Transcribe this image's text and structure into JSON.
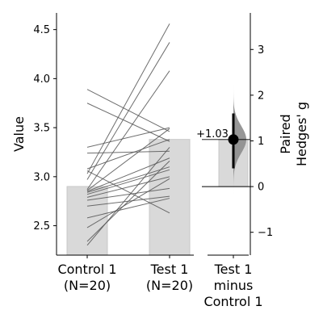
{
  "chart_data": [
    {
      "type": "paired-bar",
      "ylabel": "Value",
      "ylim": [
        2.2,
        4.67
      ],
      "yticks": [
        2.5,
        3.0,
        3.5,
        4.0,
        4.5
      ],
      "ytick_labels": [
        "2.5",
        "3.0",
        "3.5",
        "4.0",
        "4.5"
      ],
      "categories": [
        "Control 1\n(N=20)",
        "Test 1\n(N=20)"
      ],
      "bar_values": [
        2.9,
        3.38
      ],
      "bar_color": "#d9d9d9",
      "line_color": "#555555",
      "pairs": [
        [
          3.89,
          3.46
        ],
        [
          3.75,
          3.36
        ],
        [
          3.3,
          3.5
        ],
        [
          3.24,
          3.26
        ],
        [
          3.08,
          3.38
        ],
        [
          3.06,
          2.63
        ],
        [
          3.03,
          4.56
        ],
        [
          2.97,
          4.37
        ],
        [
          2.87,
          4.08
        ],
        [
          2.86,
          3.49
        ],
        [
          2.85,
          3.19
        ],
        [
          2.84,
          3.1
        ],
        [
          2.82,
          3.07
        ],
        [
          2.79,
          3.0
        ],
        [
          2.76,
          2.88
        ],
        [
          2.7,
          2.8
        ],
        [
          2.58,
          2.78
        ],
        [
          2.48,
          2.98
        ],
        [
          2.34,
          3.16
        ],
        [
          2.3,
          3.3
        ]
      ]
    },
    {
      "type": "effect-size",
      "ylabel": "Paired\nHedges' g",
      "ylim": [
        -1.5,
        3.8
      ],
      "yticks": [
        -1,
        0,
        1,
        2,
        3
      ],
      "ytick_labels": [
        "−1",
        "0",
        "1",
        "2",
        "3"
      ],
      "category": "Test 1\nminus\nControl 1",
      "effect_size": 1.03,
      "effect_label": "+1.03",
      "ci": [
        0.4,
        1.6
      ],
      "bootstrap_bar_value": 1.03,
      "bar_color": "#d9d9d9",
      "dist_color": "#8c8c8c"
    }
  ]
}
